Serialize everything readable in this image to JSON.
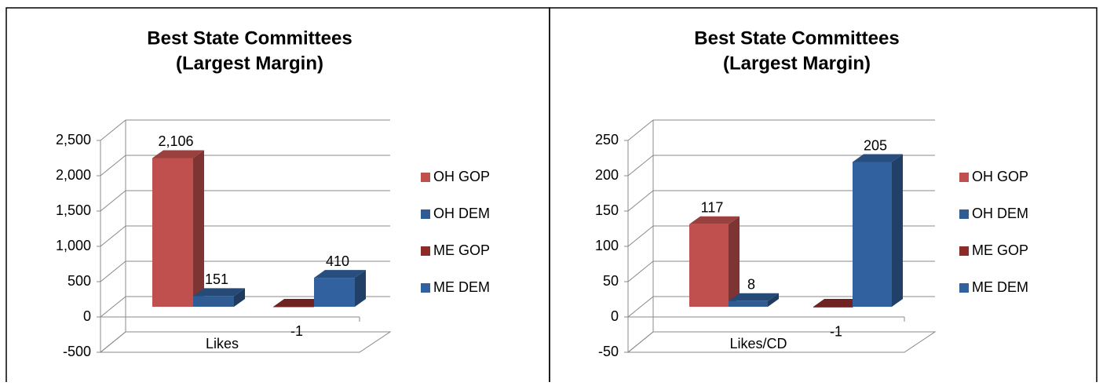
{
  "chart_data": [
    {
      "type": "bar3d",
      "title": [
        "Best State Committees",
        "(Largest Margin)"
      ],
      "categories": [
        "Likes"
      ],
      "series": [
        {
          "name": "OH GOP",
          "color": "#c0504d",
          "values": [
            2106
          ],
          "value_labels": [
            "2,106"
          ]
        },
        {
          "name": "OH DEM",
          "color": "#2f5d93",
          "values": [
            151
          ]
        },
        {
          "name": "ME GOP",
          "color": "#8c2b28",
          "values": [
            -1
          ]
        },
        {
          "name": "ME DEM",
          "color": "#31629f",
          "values": [
            410
          ]
        }
      ],
      "ylim": [
        -500,
        2500
      ],
      "yticks": [
        -500,
        0,
        500,
        {
          "value": 1000,
          "label": "1,000"
        },
        {
          "value": 1500,
          "label": "1,500"
        },
        {
          "value": 2000,
          "label": "2,000"
        },
        {
          "value": 2500,
          "label": "2,500"
        }
      ],
      "grid": true,
      "legend": "right"
    },
    {
      "type": "bar3d",
      "title": [
        "Best State Committees",
        "(Largest Margin)"
      ],
      "categories": [
        "Likes/CD"
      ],
      "series": [
        {
          "name": "OH GOP",
          "color": "#c0504d",
          "values": [
            117
          ]
        },
        {
          "name": "OH DEM",
          "color": "#2f5d93",
          "values": [
            8
          ]
        },
        {
          "name": "ME GOP",
          "color": "#8c2b28",
          "values": [
            -1
          ]
        },
        {
          "name": "ME DEM",
          "color": "#31629f",
          "values": [
            205
          ]
        }
      ],
      "ylim": [
        -50,
        250
      ],
      "yticks": [
        -50,
        0,
        50,
        100,
        150,
        200,
        250
      ],
      "grid": true,
      "legend": "right"
    }
  ]
}
